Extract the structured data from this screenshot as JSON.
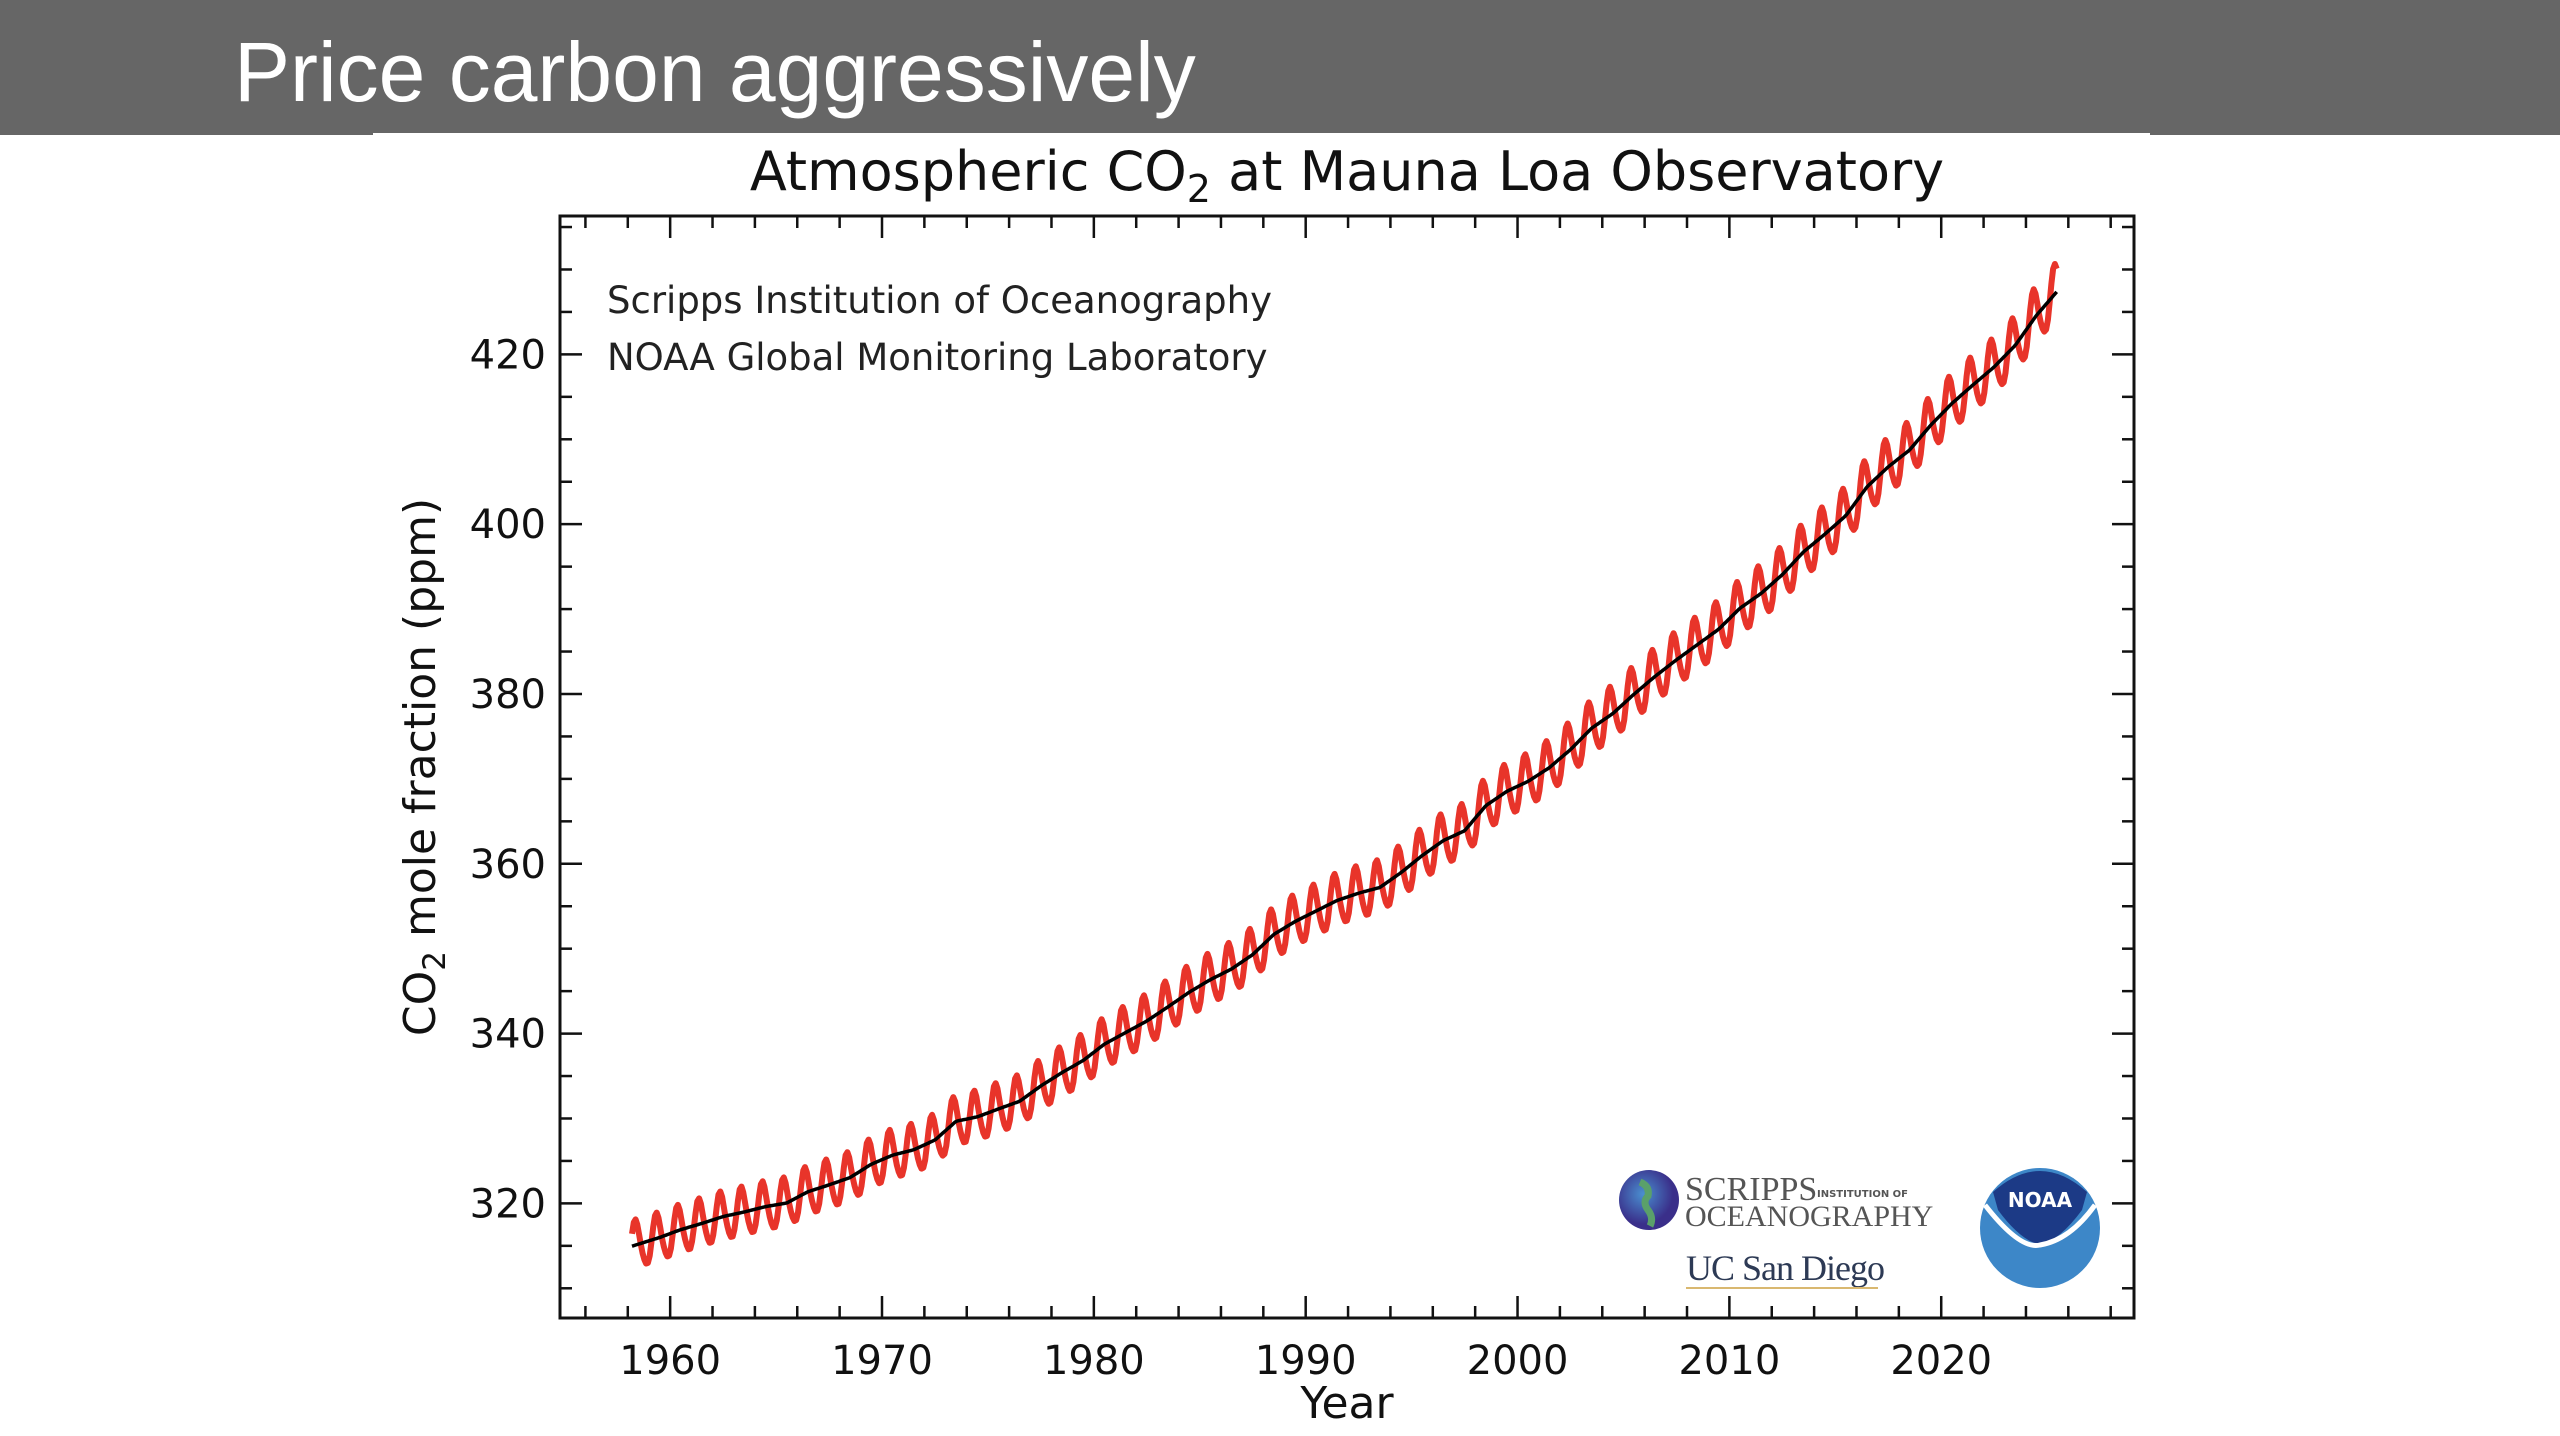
{
  "slide": {
    "title": "Price carbon aggressively"
  },
  "chart_data": {
    "type": "line",
    "title": "Atmospheric CO",
    "title_sub": "2",
    "title_rest": " at Mauna Loa Observatory",
    "xlabel": "Year",
    "ylabel_prefix": "CO",
    "ylabel_sub": "2",
    "ylabel_rest": " mole fraction (ppm)",
    "xlim": [
      1954.8,
      2029.1
    ],
    "ylim": [
      306.5,
      436.3
    ],
    "xticks": [
      1960,
      1970,
      1980,
      1990,
      2000,
      2010,
      2020
    ],
    "yticks": [
      320,
      340,
      360,
      380,
      400,
      420
    ],
    "x_minor_step": 2,
    "y_minor_step": 5,
    "tick_direction": "in",
    "grid": false,
    "annotations": [
      "Scripps Institution of Oceanography",
      "NOAA Global Monitoring Laboratory"
    ],
    "series": [
      {
        "kind": "monthly",
        "color": "#e8342a",
        "start": 1958.2,
        "end": 2025.5,
        "seasonal_half_amplitude_ppm": 3.1,
        "seasonal_peak": "May"
      },
      {
        "kind": "trend",
        "color": "#000000"
      }
    ],
    "annual_means": {
      "years": [
        1958,
        1959,
        1960,
        1961,
        1962,
        1963,
        1964,
        1965,
        1966,
        1967,
        1968,
        1969,
        1970,
        1971,
        1972,
        1973,
        1974,
        1975,
        1976,
        1977,
        1978,
        1979,
        1980,
        1981,
        1982,
        1983,
        1984,
        1985,
        1986,
        1987,
        1988,
        1989,
        1990,
        1991,
        1992,
        1993,
        1994,
        1995,
        1996,
        1997,
        1998,
        1999,
        2000,
        2001,
        2002,
        2003,
        2004,
        2005,
        2006,
        2007,
        2008,
        2009,
        2010,
        2011,
        2012,
        2013,
        2014,
        2015,
        2016,
        2017,
        2018,
        2019,
        2020,
        2021,
        2022,
        2023,
        2024,
        2025
      ],
      "ppm": [
        315.2,
        315.98,
        316.91,
        317.64,
        318.45,
        318.99,
        319.62,
        320.04,
        321.37,
        322.18,
        323.05,
        324.62,
        325.68,
        326.32,
        327.46,
        329.68,
        330.19,
        331.13,
        332.03,
        333.84,
        335.41,
        336.84,
        338.76,
        340.12,
        341.48,
        343.15,
        344.87,
        346.35,
        347.61,
        349.31,
        351.69,
        353.2,
        354.45,
        355.7,
        356.54,
        357.21,
        358.96,
        360.97,
        362.74,
        363.88,
        366.84,
        368.54,
        369.71,
        371.32,
        373.45,
        375.98,
        377.7,
        379.98,
        382.09,
        384.02,
        385.83,
        387.64,
        390.1,
        391.85,
        394.06,
        396.74,
        398.81,
        401.01,
        404.41,
        406.76,
        408.72,
        411.65,
        414.21,
        416.41,
        418.53,
        421.08,
        424.61,
        427.5
      ]
    },
    "logos": {
      "scripps": [
        "SCRIPPS",
        "INSTITUTION OF",
        "OCEANOGRAPHY"
      ],
      "ucsd": "UC San Diego",
      "noaa": "NOAA"
    }
  }
}
